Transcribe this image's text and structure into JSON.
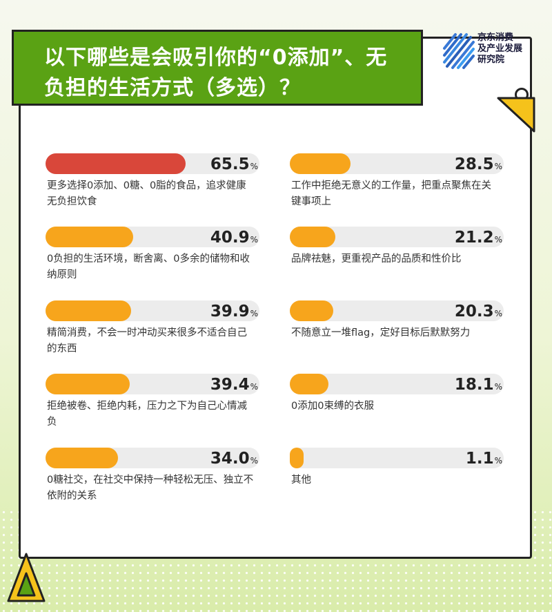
{
  "title": {
    "line1": "以下哪些是会吸引你的“0添加”、无",
    "line2": "负担的生活方式（多选）？"
  },
  "logo": {
    "line1": "京东消费",
    "line2": "及产业发展",
    "line3": "研究院"
  },
  "colors": {
    "title_bg": "#5aa214",
    "highlight_bar": "#d9473a",
    "bar": "#f7a51c",
    "track": "#ececec"
  },
  "chart_data": {
    "type": "bar",
    "orientation": "horizontal",
    "unit": "%",
    "xlim": [
      0,
      100
    ],
    "categories": [
      "更多选择0添加、0糖、0脂的食品，追求健康无负担饮食",
      "0负担的生活环境，断舍离、0多余的储物和收纳原则",
      "精简消费，不会一时冲动买来很多不适合自己的东西",
      "拒绝被卷、拒绝内耗，压力之下为自己心情减负",
      "0糖社交，在社交中保持一种轻松无压、独立不依附的关系",
      "工作中拒绝无意义的工作量，把重点聚焦在关键事项上",
      "品牌祛魅，更重视产品的品质和性价比",
      "不随意立一堆flag，定好目标后默默努力",
      "0添加0束缚的衣服",
      "其他"
    ],
    "values": [
      65.5,
      40.9,
      39.9,
      39.4,
      34.0,
      28.5,
      21.2,
      20.3,
      18.1,
      1.1
    ],
    "value_labels": [
      "65.5",
      "40.9",
      "39.9",
      "39.4",
      "34.0",
      "28.5",
      "21.2",
      "20.3",
      "18.1",
      "1.1"
    ],
    "highlight_index": 0
  }
}
